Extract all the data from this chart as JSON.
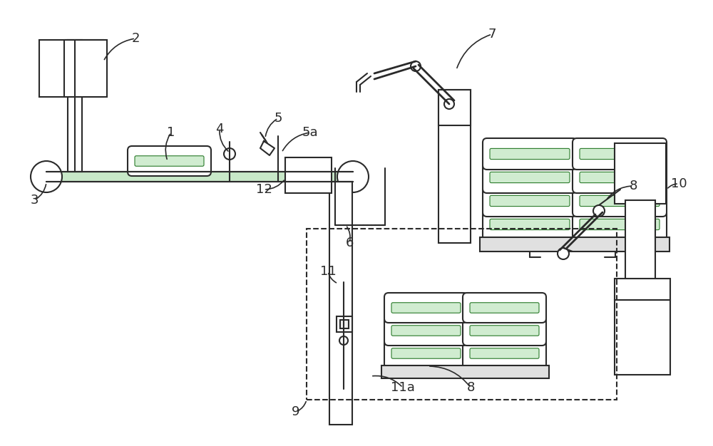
{
  "bg_color": "#ffffff",
  "line_color": "#2a2a2a",
  "fig_width": 10.0,
  "fig_height": 6.26,
  "dpi": 100
}
